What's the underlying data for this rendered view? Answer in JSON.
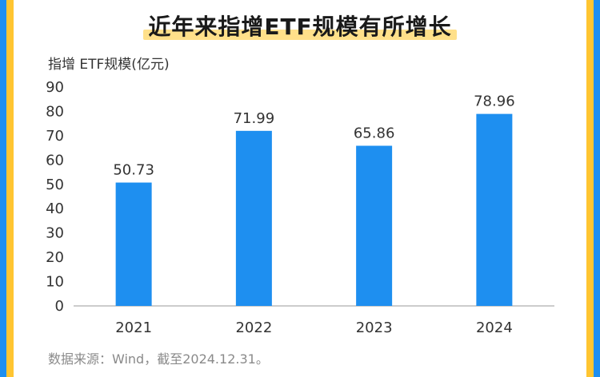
{
  "title": "近年来指增ETF规模有所增长",
  "source": "数据来源：Wind，截至2024.12.31。",
  "colors": {
    "bar": "#1e8ff0",
    "frame_outer": "#1e8ff0",
    "frame_inner": "#ffc531",
    "title_highlight": "#ffe08a",
    "axis": "#9a9a9a"
  },
  "chart_data": {
    "type": "bar",
    "ylabel": "指增 ETF规模(亿元)",
    "xlabel": "",
    "categories": [
      "2021",
      "2022",
      "2023",
      "2024"
    ],
    "values": [
      50.73,
      71.99,
      65.86,
      78.96
    ],
    "data_labels": [
      "50.73",
      "71.99",
      "65.86",
      "78.96"
    ],
    "ylim": [
      0,
      90
    ],
    "yticks": [
      "0",
      "10",
      "20",
      "30",
      "40",
      "50",
      "60",
      "70",
      "80",
      "90"
    ],
    "grid": false,
    "legend": "none"
  }
}
